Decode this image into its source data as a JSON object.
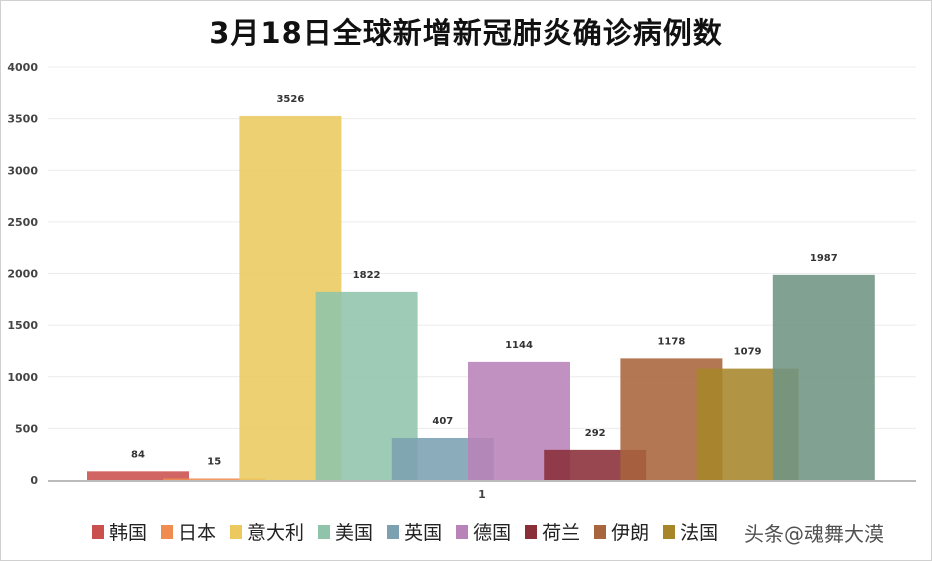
{
  "title": "3月18日全球新增新冠肺炎确诊病例数",
  "watermark": "头条@魂舞大漠",
  "chart_data": {
    "type": "bar",
    "title": "3月18日全球新增新冠肺炎确诊病例数",
    "categories": [
      "1"
    ],
    "ylim": [
      0,
      4000
    ],
    "yticks": [
      0,
      500,
      1000,
      1500,
      2000,
      2500,
      3000,
      3500,
      4000
    ],
    "grid": true,
    "legend_position": "bottom",
    "series": [
      {
        "name": "韩国",
        "value": 84,
        "color": "#c9504e"
      },
      {
        "name": "日本",
        "value": 15,
        "color": "#f08c50"
      },
      {
        "name": "意大利",
        "value": 3526,
        "color": "#ebc95f"
      },
      {
        "name": "美国",
        "value": 1822,
        "color": "#8fc4ab"
      },
      {
        "name": "英国",
        "value": 407,
        "color": "#7ba0b0"
      },
      {
        "name": "德国",
        "value": 1144,
        "color": "#b883b8"
      },
      {
        "name": "荷兰",
        "value": 292,
        "color": "#8a2e38"
      },
      {
        "name": "伊朗",
        "value": 1178,
        "color": "#a8643c"
      },
      {
        "name": "法国",
        "value": 1079,
        "color": "#a7862a"
      },
      {
        "name": "",
        "value": 1987,
        "color": "#6f9483"
      }
    ]
  }
}
